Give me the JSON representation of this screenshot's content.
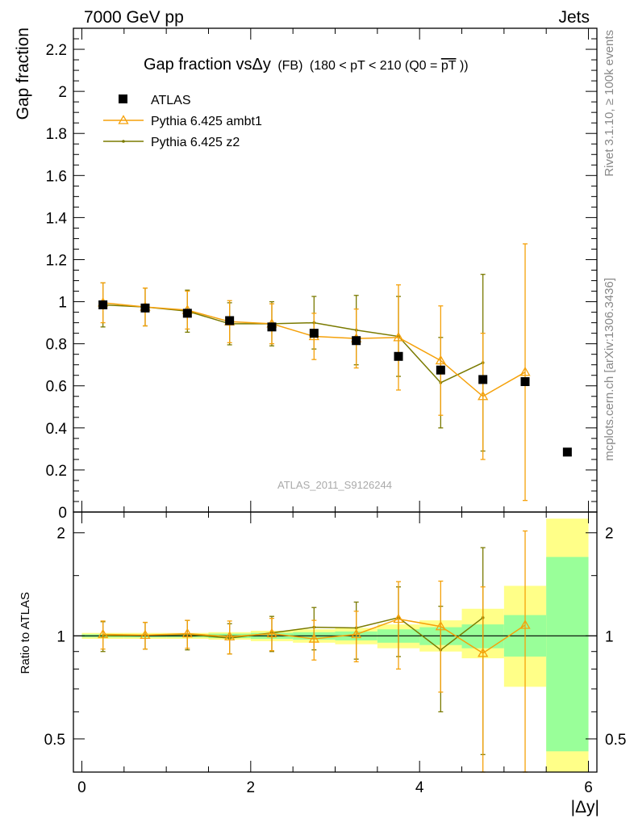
{
  "header": {
    "left": "7000 GeV pp",
    "right": "Jets"
  },
  "side_labels": {
    "rivet": "Rivet 3.1.10, ≥ 100k events",
    "mcplots": "mcplots.cern.ch [arXiv:1306.3436]"
  },
  "watermark": "ATLAS_2011_S9126244",
  "chart_data": [
    {
      "type": "scatter",
      "title": "Gap fraction vsΔy (FB) (180 < pT < 210 (Q0 =pT))",
      "title_parts": {
        "main": "Gap fraction vsΔy",
        "small_1": "(FB)",
        "small_2": "(180 < pT < 210 (Q0 =",
        "overlined": "pT",
        "small_3": "))"
      },
      "ylabel": "Gap fraction",
      "xlim": [
        -0.1,
        6.1
      ],
      "ylim": [
        0,
        2.3
      ],
      "y_ticks": [
        "0",
        "0.2",
        "0.4",
        "0.6",
        "0.8",
        "1",
        "1.2",
        "1.4",
        "1.6",
        "1.8",
        "2",
        "2.2"
      ],
      "grid": false,
      "legend_position": "top-left",
      "legend": [
        "ATLAS",
        "Pythia 6.425 ambt1",
        "Pythia 6.425 z2"
      ],
      "series": [
        {
          "name": "ATLAS",
          "color": "#000000",
          "marker": "square",
          "x": [
            0.25,
            0.75,
            1.25,
            1.75,
            2.25,
            2.75,
            3.25,
            3.75,
            4.25,
            4.75,
            5.25,
            5.75
          ],
          "y": [
            0.985,
            0.97,
            0.945,
            0.91,
            0.88,
            0.85,
            0.815,
            0.74,
            0.675,
            0.63,
            0.62,
            0.285
          ]
        },
        {
          "name": "Pythia 6.425 ambt1",
          "color": "#f5a10a",
          "marker": "open-triangle",
          "x": [
            0.25,
            0.75,
            1.25,
            1.75,
            2.25,
            2.75,
            3.25,
            3.75,
            4.25,
            4.75,
            5.25
          ],
          "y": [
            0.995,
            0.975,
            0.96,
            0.905,
            0.895,
            0.835,
            0.825,
            0.83,
            0.72,
            0.55,
            0.665
          ],
          "err": [
            0.095,
            0.09,
            0.09,
            0.1,
            0.095,
            0.11,
            0.14,
            0.25,
            0.26,
            0.3,
            0.61
          ]
        },
        {
          "name": "Pythia 6.425 z2",
          "color": "#7a7a00",
          "marker": "dot",
          "x": [
            0.25,
            0.75,
            1.25,
            1.75,
            2.25,
            2.75,
            3.25,
            3.75,
            4.25,
            4.75
          ],
          "y": [
            0.985,
            0.975,
            0.955,
            0.895,
            0.895,
            0.9,
            0.865,
            0.835,
            0.615,
            0.71
          ],
          "err": [
            0.105,
            0.09,
            0.1,
            0.1,
            0.105,
            0.125,
            0.165,
            0.19,
            0.215,
            0.42
          ]
        }
      ]
    },
    {
      "type": "scatter",
      "ylabel": "Ratio to ATLAS",
      "xlabel": "|Δy|",
      "xlim": [
        -0.1,
        6.1
      ],
      "ylim": [
        0.4,
        2.3
      ],
      "y_scale": "log",
      "y_ticks": [
        "0.5",
        "1",
        "2"
      ],
      "x_ticks": [
        "0",
        "2",
        "4",
        "6"
      ],
      "reference_line": 1,
      "bands": {
        "bins": [
          [
            0,
            0.5
          ],
          [
            0.5,
            1
          ],
          [
            1,
            1.5
          ],
          [
            1.5,
            2
          ],
          [
            2,
            2.5
          ],
          [
            2.5,
            3
          ],
          [
            3,
            3.5
          ],
          [
            3.5,
            4
          ],
          [
            4,
            4.5
          ],
          [
            4.5,
            5
          ],
          [
            5,
            5.5
          ],
          [
            5.5,
            6
          ]
        ],
        "inner_color": "#99ff99",
        "outer_color": "#ffff88",
        "inner": [
          [
            0.99,
            1.01
          ],
          [
            0.99,
            1.01
          ],
          [
            0.99,
            1.01
          ],
          [
            0.985,
            1.015
          ],
          [
            0.98,
            1.02
          ],
          [
            0.975,
            1.025
          ],
          [
            0.97,
            1.03
          ],
          [
            0.955,
            1.045
          ],
          [
            0.94,
            1.06
          ],
          [
            0.92,
            1.08
          ],
          [
            0.87,
            1.15
          ],
          [
            0.46,
            1.7
          ]
        ],
        "outer": [
          [
            0.98,
            1.02
          ],
          [
            0.98,
            1.02
          ],
          [
            0.98,
            1.02
          ],
          [
            0.975,
            1.025
          ],
          [
            0.965,
            1.035
          ],
          [
            0.955,
            1.045
          ],
          [
            0.945,
            1.055
          ],
          [
            0.92,
            1.08
          ],
          [
            0.9,
            1.11
          ],
          [
            0.86,
            1.2
          ],
          [
            0.71,
            1.4
          ],
          [
            0.2,
            2.2
          ]
        ]
      },
      "series": [
        {
          "name": "Pythia 6.425 ambt1",
          "color": "#f5a10a",
          "marker": "open-triangle",
          "x": [
            0.25,
            0.75,
            1.25,
            1.75,
            2.25,
            2.75,
            3.25,
            3.75,
            4.25,
            4.75,
            5.25
          ],
          "y": [
            1.01,
            1.005,
            1.015,
            0.995,
            1.015,
            0.98,
            1.01,
            1.12,
            1.065,
            0.89,
            1.075
          ],
          "err": [
            0.095,
            0.09,
            0.095,
            0.11,
            0.11,
            0.13,
            0.17,
            0.32,
            0.38,
            0.5,
            0.95
          ]
        },
        {
          "name": "Pythia 6.425 z2",
          "color": "#7a7a00",
          "marker": "dot",
          "x": [
            0.25,
            0.75,
            1.25,
            1.75,
            2.25,
            2.75,
            3.25,
            3.75,
            4.25,
            4.75
          ],
          "y": [
            1.0,
            1.005,
            1.01,
            0.985,
            1.02,
            1.06,
            1.055,
            1.13,
            0.91,
            1.13
          ],
          "err": [
            0.1,
            0.09,
            0.1,
            0.1,
            0.12,
            0.15,
            0.2,
            0.26,
            0.31,
            0.68
          ]
        }
      ]
    }
  ]
}
